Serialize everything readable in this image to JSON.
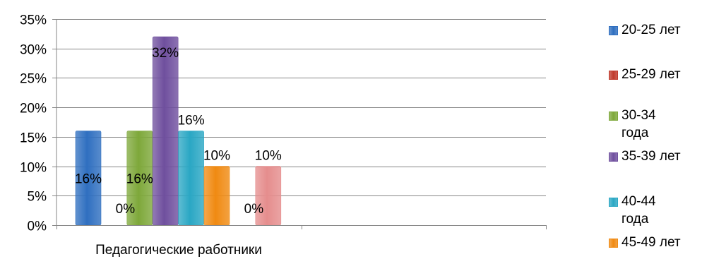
{
  "chart_data": {
    "type": "bar",
    "categories": [
      "Педагогические работники"
    ],
    "series": [
      {
        "name": "20-25 лет",
        "values": [
          16
        ],
        "label": "16%",
        "color": "#2f6fc0"
      },
      {
        "name": "25-29 лет",
        "values": [
          0
        ],
        "label": "0%",
        "color": "#c0392b"
      },
      {
        "name": "30-34 года",
        "values": [
          16
        ],
        "label": "16%",
        "color": "#7ea83a"
      },
      {
        "name": "35-39 лет",
        "values": [
          32
        ],
        "label": "32%",
        "color": "#6f4f9e"
      },
      {
        "name": "40-44 года",
        "values": [
          16
        ],
        "label": "16%",
        "color": "#2aa7c4"
      },
      {
        "name": "45-49 лет",
        "values": [
          10
        ],
        "label": "10%",
        "color": "#f08a12"
      },
      {
        "name": "",
        "values": [
          0
        ],
        "label": "0%",
        "color": "#2f4f8a"
      },
      {
        "name": "",
        "values": [
          10
        ],
        "label": "10%",
        "color": "#e58d8d"
      }
    ],
    "yticks": [
      "0%",
      "5%",
      "10%",
      "15%",
      "20%",
      "25%",
      "30%",
      "35%"
    ],
    "ylim": [
      0,
      35
    ],
    "grid": true,
    "legend_position": "right"
  }
}
